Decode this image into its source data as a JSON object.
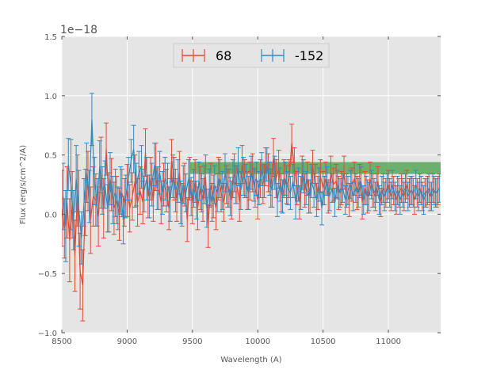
{
  "chart_data": {
    "type": "line",
    "xlabel": "Wavelength (A)",
    "ylabel": "Flux (erg/s/cm^2/A)",
    "y_offset_text": "1e−18",
    "xlim": [
      8500,
      11400
    ],
    "ylim": [
      -1.0,
      1.5
    ],
    "x_ticks": [
      8500,
      9000,
      9500,
      10000,
      10500,
      11000
    ],
    "x_tick_labels": [
      "8500",
      "9000",
      "9500",
      "10000",
      "10500",
      "11000"
    ],
    "y_ticks": [
      -1.0,
      -0.5,
      0.0,
      0.5,
      1.0,
      1.5
    ],
    "y_tick_labels": [
      "−1.0",
      "−0.5",
      "0.0",
      "0.5",
      "1.0",
      "1.5"
    ],
    "grid": true,
    "legend_placement": "top-center",
    "band": {
      "x_start": 9480,
      "x_end": 11400,
      "y_low": 0.34,
      "y_high": 0.44,
      "color": "#3a9a3a",
      "opacity": 0.7
    },
    "colors": {
      "background": "#e5e5e5",
      "grid": "#ffffff"
    },
    "series": [
      {
        "name": "68",
        "color": "#e24a33",
        "x_start": 8500,
        "x_step": 20,
        "values": [
          0.05,
          -0.12,
          0.1,
          -0.22,
          0.08,
          -0.35,
          0.2,
          -0.48,
          -0.6,
          0.1,
          0.28,
          -0.05,
          0.15,
          0.12,
          -0.02,
          0.35,
          0.05,
          0.55,
          0.1,
          0.25,
          0.05,
          0.12,
          0.0,
          0.18,
          0.1,
          0.2,
          0.05,
          0.15,
          0.28,
          0.1,
          0.2,
          0.1,
          0.52,
          0.15,
          0.3,
          0.12,
          0.4,
          0.22,
          0.1,
          0.25,
          0.2,
          0.05,
          0.45,
          0.3,
          0.12,
          0.35,
          0.08,
          0.25,
          -0.05,
          0.3,
          0.1,
          0.28,
          0.05,
          0.22,
          0.12,
          0.32,
          -0.1,
          0.25,
          0.15,
          0.05,
          0.3,
          0.18,
          0.1,
          0.25,
          0.22,
          0.12,
          0.35,
          0.25,
          0.1,
          0.42,
          0.3,
          0.2,
          0.28,
          0.35,
          0.22,
          0.12,
          0.3,
          0.25,
          0.4,
          0.35,
          0.22,
          0.48,
          0.3,
          0.38,
          0.18,
          0.3,
          0.25,
          0.3,
          0.6,
          0.4,
          0.22,
          0.1,
          0.35,
          0.2,
          0.3,
          0.15,
          0.4,
          0.28,
          0.18,
          0.32,
          0.22,
          0.3,
          0.15,
          0.35,
          0.25,
          0.28,
          0.18,
          0.22,
          0.35,
          0.2,
          0.12,
          0.25,
          0.3,
          0.18,
          0.28,
          0.1,
          0.22,
          0.15,
          0.3,
          0.2,
          0.15,
          0.28,
          0.1,
          0.22,
          0.18,
          0.25,
          0.15,
          0.2,
          0.12,
          0.18,
          0.22,
          0.15,
          0.25,
          0.18,
          0.2,
          0.12,
          0.18,
          0.22,
          0.15,
          0.18,
          0.2,
          0.15,
          0.22,
          0.18,
          0.2
        ],
        "errors": [
          0.32,
          0.25,
          0.3,
          0.35,
          0.28,
          0.3,
          0.3,
          0.32,
          0.3,
          0.28,
          0.25,
          0.28,
          0.25,
          0.22,
          0.25,
          0.3,
          0.25,
          0.22,
          0.25,
          0.22,
          0.22,
          0.2,
          0.22,
          0.2,
          0.2,
          0.22,
          0.2,
          0.2,
          0.22,
          0.2,
          0.2,
          0.18,
          0.2,
          0.18,
          0.18,
          0.18,
          0.2,
          0.18,
          0.18,
          0.18,
          0.18,
          0.18,
          0.18,
          0.18,
          0.18,
          0.18,
          0.18,
          0.18,
          0.18,
          0.18,
          0.18,
          0.18,
          0.18,
          0.18,
          0.18,
          0.18,
          0.18,
          0.18,
          0.18,
          0.18,
          0.18,
          0.16,
          0.16,
          0.16,
          0.16,
          0.16,
          0.16,
          0.16,
          0.16,
          0.16,
          0.16,
          0.16,
          0.16,
          0.16,
          0.16,
          0.16,
          0.16,
          0.16,
          0.16,
          0.16,
          0.16,
          0.16,
          0.16,
          0.16,
          0.16,
          0.16,
          0.16,
          0.16,
          0.16,
          0.16,
          0.14,
          0.14,
          0.14,
          0.14,
          0.14,
          0.14,
          0.14,
          0.14,
          0.14,
          0.14,
          0.14,
          0.14,
          0.14,
          0.14,
          0.14,
          0.14,
          0.14,
          0.14,
          0.14,
          0.14,
          0.14,
          0.14,
          0.14,
          0.14,
          0.14,
          0.14,
          0.14,
          0.14,
          0.14,
          0.14,
          0.12,
          0.12,
          0.12,
          0.12,
          0.12,
          0.12,
          0.12,
          0.12,
          0.12,
          0.12,
          0.12,
          0.12,
          0.12,
          0.12,
          0.12,
          0.12,
          0.12,
          0.12,
          0.12,
          0.12,
          0.12,
          0.12,
          0.12,
          0.12,
          0.12
        ]
      },
      {
        "name": "-152",
        "color": "#348abd",
        "x_start": 8510,
        "x_step": 20,
        "values": [
          0.15,
          -0.1,
          0.42,
          0.25,
          -0.05,
          0.3,
          0.05,
          -0.2,
          0.1,
          0.35,
          0.15,
          0.8,
          0.28,
          0.1,
          0.4,
          0.2,
          0.25,
          0.05,
          0.3,
          0.12,
          0.18,
          0.05,
          0.2,
          -0.05,
          0.15,
          0.3,
          0.45,
          0.55,
          0.25,
          0.35,
          0.4,
          0.2,
          0.3,
          0.15,
          0.25,
          0.42,
          0.22,
          0.35,
          0.18,
          0.3,
          0.25,
          0.12,
          0.32,
          0.2,
          0.28,
          0.1,
          0.25,
          0.18,
          0.3,
          0.15,
          0.22,
          0.12,
          0.28,
          0.18,
          0.25,
          0.05,
          0.22,
          0.1,
          0.25,
          0.18,
          0.3,
          0.2,
          0.35,
          0.22,
          0.15,
          0.3,
          0.25,
          0.4,
          0.2,
          0.32,
          0.28,
          0.18,
          0.35,
          0.25,
          0.3,
          0.22,
          0.38,
          0.28,
          0.42,
          0.3,
          0.2,
          0.35,
          0.12,
          0.25,
          0.15,
          0.3,
          0.22,
          0.18,
          0.28,
          0.1,
          0.25,
          0.18,
          0.32,
          0.22,
          0.15,
          0.28,
          0.2,
          0.12,
          0.25,
          0.05,
          0.2,
          0.28,
          0.15,
          0.22,
          0.1,
          0.25,
          0.18,
          0.22,
          0.12,
          0.2,
          0.25,
          0.15,
          0.22,
          0.18,
          0.28,
          0.12,
          0.2,
          0.15,
          0.25,
          0.18,
          0.22,
          0.12,
          0.2,
          0.15,
          0.22,
          0.18,
          0.25,
          0.15,
          0.2,
          0.12,
          0.18,
          0.22,
          0.15,
          0.2,
          0.18,
          0.25,
          0.15,
          0.2,
          0.12,
          0.18,
          0.22,
          0.15,
          0.2,
          0.18,
          0.22
        ],
        "errors": [
          0.28,
          0.3,
          0.22,
          0.38,
          0.25,
          0.28,
          0.32,
          0.22,
          0.2,
          0.25,
          0.22,
          0.22,
          0.2,
          0.2,
          0.22,
          0.2,
          0.2,
          0.2,
          0.22,
          0.2,
          0.2,
          0.18,
          0.2,
          0.2,
          0.18,
          0.18,
          0.18,
          0.2,
          0.18,
          0.18,
          0.18,
          0.18,
          0.18,
          0.18,
          0.18,
          0.18,
          0.18,
          0.18,
          0.18,
          0.18,
          0.18,
          0.18,
          0.18,
          0.18,
          0.18,
          0.18,
          0.16,
          0.16,
          0.16,
          0.16,
          0.16,
          0.16,
          0.16,
          0.16,
          0.16,
          0.16,
          0.16,
          0.16,
          0.16,
          0.16,
          0.16,
          0.16,
          0.16,
          0.16,
          0.16,
          0.16,
          0.16,
          0.16,
          0.16,
          0.16,
          0.14,
          0.14,
          0.14,
          0.14,
          0.14,
          0.14,
          0.14,
          0.14,
          0.14,
          0.14,
          0.14,
          0.14,
          0.14,
          0.14,
          0.14,
          0.14,
          0.14,
          0.14,
          0.14,
          0.14,
          0.14,
          0.14,
          0.14,
          0.14,
          0.14,
          0.14,
          0.14,
          0.14,
          0.14,
          0.14,
          0.12,
          0.12,
          0.12,
          0.12,
          0.12,
          0.12,
          0.12,
          0.12,
          0.12,
          0.12,
          0.12,
          0.12,
          0.12,
          0.12,
          0.12,
          0.12,
          0.12,
          0.12,
          0.12,
          0.12,
          0.12,
          0.12,
          0.12,
          0.12,
          0.12,
          0.12,
          0.12,
          0.12,
          0.12,
          0.12,
          0.12,
          0.12,
          0.12,
          0.12,
          0.12,
          0.12,
          0.12,
          0.12,
          0.12,
          0.12,
          0.12,
          0.12,
          0.12,
          0.12,
          0.12
        ]
      }
    ]
  }
}
